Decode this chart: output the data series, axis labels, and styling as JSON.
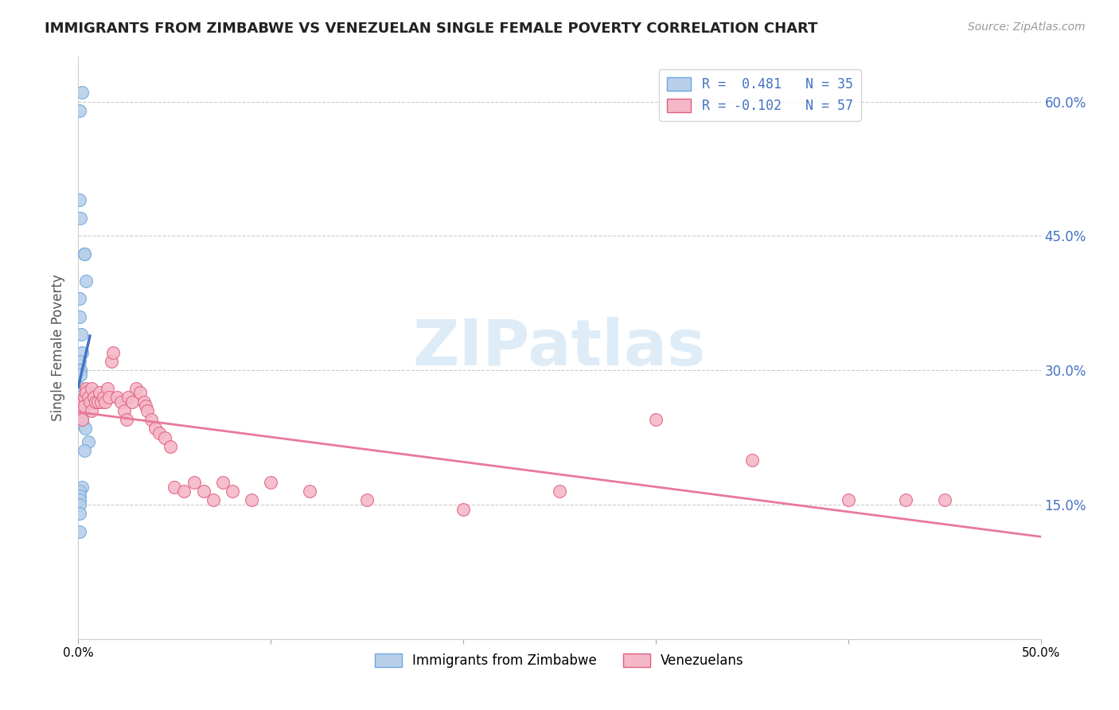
{
  "title": "IMMIGRANTS FROM ZIMBABWE VS VENEZUELAN SINGLE FEMALE POVERTY CORRELATION CHART",
  "source": "Source: ZipAtlas.com",
  "ylabel": "Single Female Poverty",
  "legend_label1": "Immigrants from Zimbabwe",
  "legend_label2": "Venezuelans",
  "legend_R1": "R =  0.481",
  "legend_N1": "N = 35",
  "legend_R2": "R = -0.102",
  "legend_N2": "N = 57",
  "xlim": [
    0.0,
    0.5
  ],
  "ylim": [
    0.0,
    0.65
  ],
  "yticks": [
    0.15,
    0.3,
    0.45,
    0.6
  ],
  "ytick_labels": [
    "15.0%",
    "30.0%",
    "45.0%",
    "60.0%"
  ],
  "xticks": [
    0.0,
    0.1,
    0.2,
    0.3,
    0.4,
    0.5
  ],
  "xtick_labels": [
    "0.0%",
    "",
    "",
    "",
    "",
    "50.0%"
  ],
  "blue_scatter_color": "#b8d0ea",
  "pink_scatter_color": "#f5b8c8",
  "blue_edge_color": "#6fa8dc",
  "pink_edge_color": "#e06080",
  "blue_line_color": "#4472C4",
  "pink_line_color": "#E8799A",
  "watermark_text": "ZIPatlas",
  "watermark_color": "#d0e4f4",
  "zim_x": [
    0.0005,
    0.002,
    0.0008,
    0.001,
    0.003,
    0.003,
    0.004,
    0.0006,
    0.0007,
    0.0015,
    0.002,
    0.0008,
    0.0009,
    0.001,
    0.001,
    0.0012,
    0.0008,
    0.0007,
    0.0006,
    0.0008,
    0.0007,
    0.0018,
    0.0015,
    0.002,
    0.0025,
    0.0035,
    0.005,
    0.003,
    0.0018,
    0.0007,
    0.0008,
    0.0006,
    0.0007,
    0.0006,
    0.0005
  ],
  "zim_y": [
    0.59,
    0.61,
    0.49,
    0.47,
    0.43,
    0.43,
    0.4,
    0.38,
    0.36,
    0.34,
    0.32,
    0.31,
    0.3,
    0.3,
    0.295,
    0.28,
    0.275,
    0.27,
    0.265,
    0.26,
    0.255,
    0.255,
    0.25,
    0.245,
    0.24,
    0.235,
    0.22,
    0.21,
    0.17,
    0.165,
    0.16,
    0.155,
    0.15,
    0.14,
    0.12
  ],
  "ven_x": [
    0.001,
    0.0015,
    0.002,
    0.002,
    0.003,
    0.003,
    0.004,
    0.004,
    0.005,
    0.006,
    0.007,
    0.007,
    0.008,
    0.009,
    0.01,
    0.011,
    0.012,
    0.013,
    0.014,
    0.015,
    0.016,
    0.017,
    0.018,
    0.02,
    0.022,
    0.024,
    0.025,
    0.026,
    0.028,
    0.03,
    0.032,
    0.034,
    0.035,
    0.036,
    0.038,
    0.04,
    0.042,
    0.045,
    0.048,
    0.05,
    0.055,
    0.06,
    0.065,
    0.07,
    0.075,
    0.08,
    0.09,
    0.1,
    0.12,
    0.15,
    0.2,
    0.25,
    0.3,
    0.35,
    0.4,
    0.43,
    0.45
  ],
  "ven_y": [
    0.265,
    0.255,
    0.255,
    0.245,
    0.27,
    0.26,
    0.28,
    0.275,
    0.27,
    0.265,
    0.28,
    0.255,
    0.27,
    0.265,
    0.265,
    0.275,
    0.265,
    0.27,
    0.265,
    0.28,
    0.27,
    0.31,
    0.32,
    0.27,
    0.265,
    0.255,
    0.245,
    0.27,
    0.265,
    0.28,
    0.275,
    0.265,
    0.26,
    0.255,
    0.245,
    0.235,
    0.23,
    0.225,
    0.215,
    0.17,
    0.165,
    0.175,
    0.165,
    0.155,
    0.175,
    0.165,
    0.155,
    0.175,
    0.165,
    0.155,
    0.145,
    0.165,
    0.245,
    0.2,
    0.155,
    0.155,
    0.155
  ]
}
